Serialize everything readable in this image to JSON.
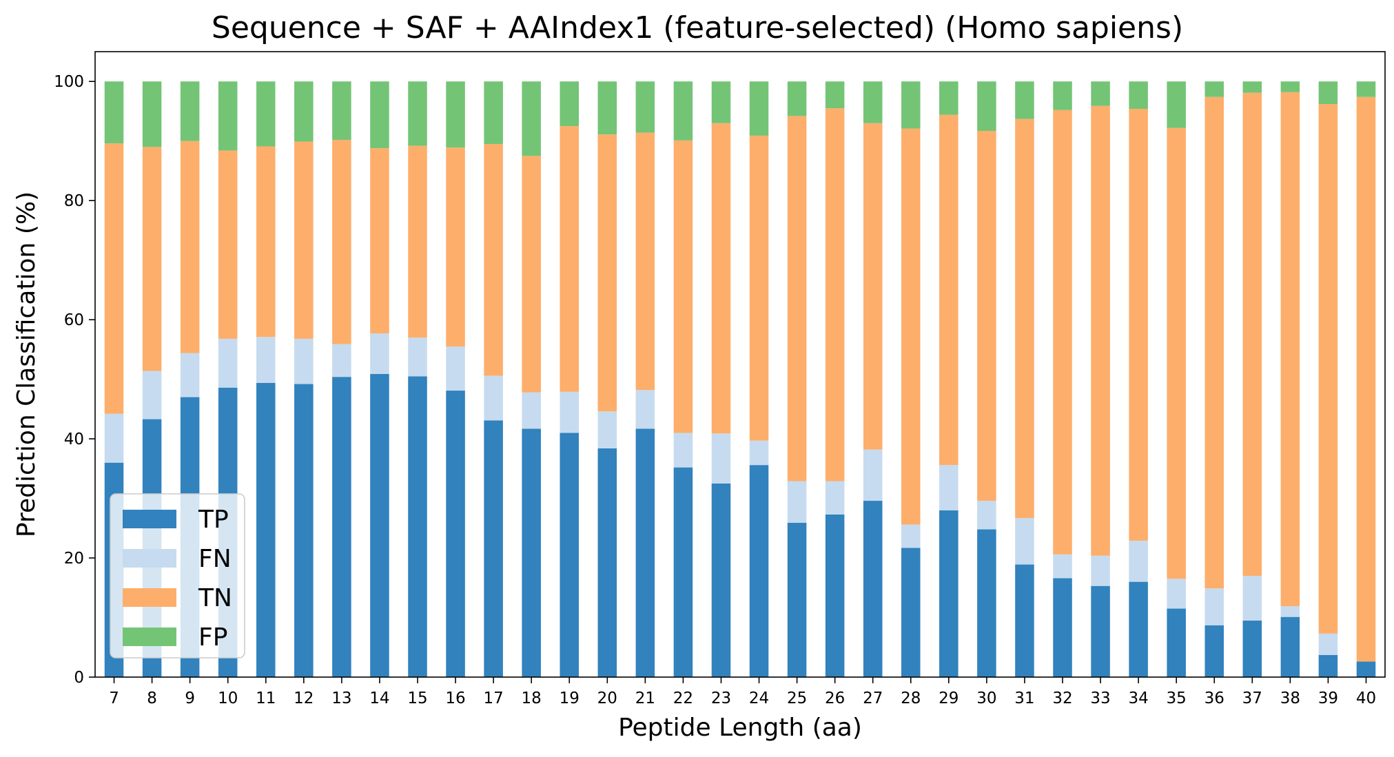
{
  "chart_data": {
    "type": "bar",
    "stacked": true,
    "title": "Sequence + SAF + AAIndex1 (feature-selected) (Homo sapiens)",
    "xlabel": "Peptide Length (aa)",
    "ylabel": "Prediction Classification (%)",
    "ylim": [
      0,
      105
    ],
    "yticks": [
      0,
      20,
      40,
      60,
      80,
      100
    ],
    "legend_position": "lower-left",
    "categories": [
      "7",
      "8",
      "9",
      "10",
      "11",
      "12",
      "13",
      "14",
      "15",
      "16",
      "17",
      "18",
      "19",
      "20",
      "21",
      "22",
      "23",
      "24",
      "25",
      "26",
      "27",
      "28",
      "29",
      "30",
      "31",
      "32",
      "33",
      "34",
      "35",
      "36",
      "37",
      "38",
      "39",
      "40"
    ],
    "series": [
      {
        "name": "TP",
        "color": "#3182bd",
        "values": [
          36.0,
          43.3,
          47.0,
          48.6,
          49.4,
          49.2,
          50.4,
          50.9,
          50.5,
          48.1,
          43.1,
          41.7,
          41.0,
          38.4,
          41.7,
          35.2,
          32.5,
          35.6,
          25.9,
          27.3,
          29.6,
          21.7,
          28.0,
          24.8,
          18.9,
          16.6,
          15.3,
          16.0,
          11.5,
          8.7,
          9.5,
          10.1,
          3.7,
          2.6
        ]
      },
      {
        "name": "FN",
        "color": "#c6dbef",
        "values": [
          8.2,
          8.1,
          7.4,
          8.2,
          7.7,
          7.6,
          5.5,
          6.8,
          6.5,
          7.4,
          7.5,
          6.1,
          6.9,
          6.2,
          6.5,
          5.8,
          8.4,
          4.1,
          7.0,
          5.6,
          8.6,
          3.9,
          7.6,
          4.8,
          7.8,
          4.0,
          5.1,
          6.9,
          5.0,
          6.2,
          7.5,
          1.8,
          3.6,
          0.0
        ]
      },
      {
        "name": "TN",
        "color": "#fdae6b",
        "values": [
          45.4,
          37.6,
          35.6,
          31.6,
          32.0,
          33.1,
          34.3,
          31.1,
          32.2,
          33.4,
          38.9,
          39.7,
          44.6,
          46.5,
          43.2,
          49.1,
          52.1,
          51.2,
          61.3,
          62.6,
          54.8,
          66.5,
          58.8,
          62.1,
          67.0,
          74.6,
          75.5,
          72.5,
          75.7,
          82.5,
          81.1,
          86.3,
          88.9,
          94.8
        ]
      },
      {
        "name": "FP",
        "color": "#74c476",
        "values": [
          10.4,
          11.0,
          10.0,
          11.6,
          10.9,
          10.1,
          9.8,
          11.2,
          10.8,
          11.1,
          10.5,
          12.5,
          7.5,
          8.9,
          8.6,
          9.9,
          7.0,
          9.1,
          5.8,
          4.5,
          7.0,
          7.9,
          5.6,
          8.3,
          6.3,
          4.8,
          4.1,
          4.6,
          7.8,
          2.6,
          1.9,
          1.8,
          3.8,
          2.6
        ]
      }
    ]
  }
}
